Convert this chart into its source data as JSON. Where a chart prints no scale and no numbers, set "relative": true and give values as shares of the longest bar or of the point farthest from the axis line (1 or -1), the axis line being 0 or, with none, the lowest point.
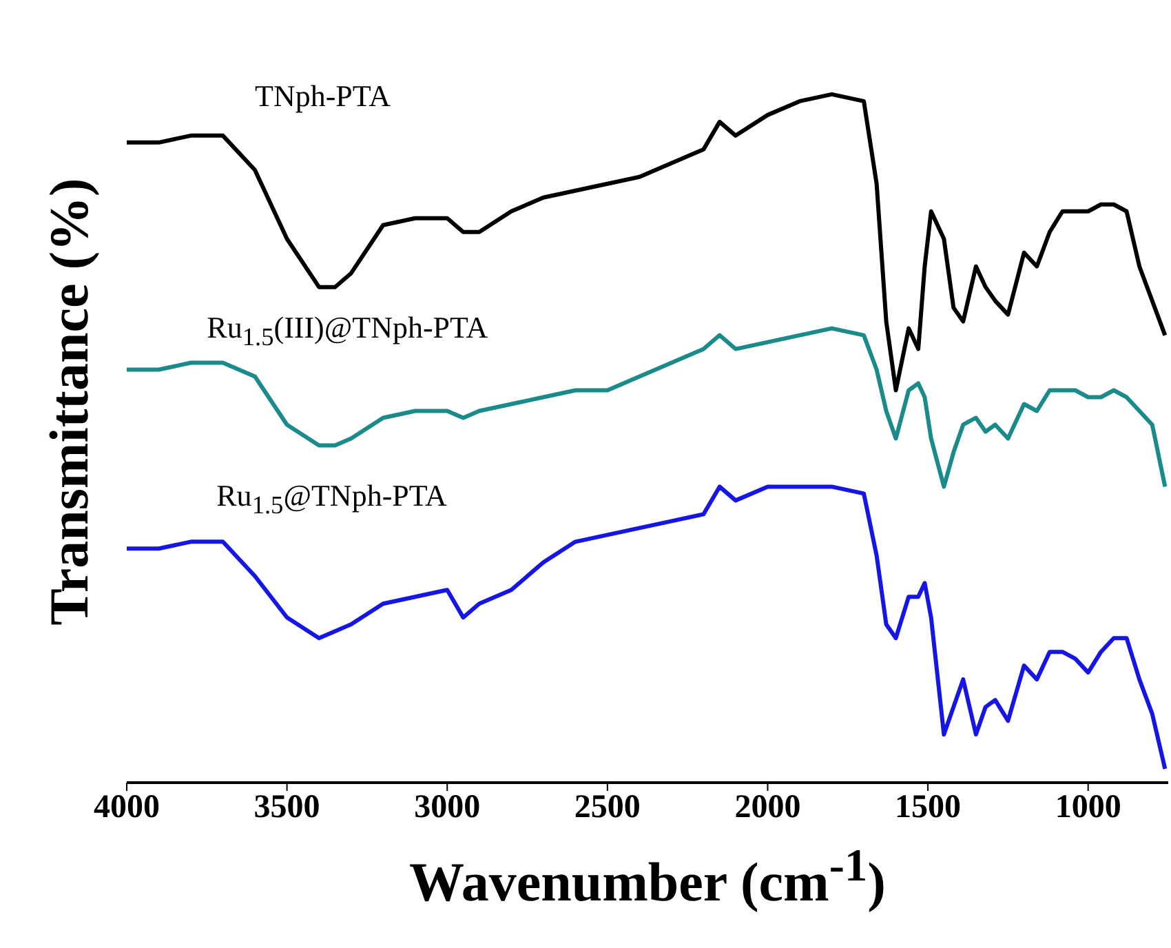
{
  "chart_data": {
    "type": "line",
    "relative": true,
    "xlabel": "Wavenumber (cm$^{-1}$)",
    "ylabel": "Transmittance (%)",
    "xlim": [
      4000,
      750
    ],
    "xticks": [
      4000,
      3500,
      3000,
      2500,
      2000,
      1500,
      1000
    ],
    "marker": "none",
    "line_style": "solid",
    "x": [
      4000,
      3900,
      3800,
      3700,
      3600,
      3500,
      3400,
      3350,
      3300,
      3200,
      3100,
      3000,
      2950,
      2900,
      2800,
      2700,
      2600,
      2500,
      2400,
      2300,
      2200,
      2150,
      2100,
      2000,
      1900,
      1800,
      1700,
      1660,
      1630,
      1600,
      1560,
      1530,
      1510,
      1490,
      1450,
      1420,
      1390,
      1350,
      1320,
      1290,
      1250,
      1200,
      1160,
      1120,
      1080,
      1040,
      1000,
      960,
      920,
      880,
      840,
      800,
      760
    ],
    "series": [
      {
        "name": "TNph-PTA",
        "color": "#000000",
        "values": [
          0.93,
          0.93,
          0.94,
          0.94,
          0.89,
          0.79,
          0.72,
          0.72,
          0.74,
          0.81,
          0.82,
          0.82,
          0.8,
          0.8,
          0.83,
          0.85,
          0.86,
          0.87,
          0.88,
          0.9,
          0.92,
          0.96,
          0.94,
          0.97,
          0.99,
          1.0,
          0.99,
          0.87,
          0.67,
          0.57,
          0.66,
          0.63,
          0.75,
          0.83,
          0.79,
          0.69,
          0.67,
          0.75,
          0.72,
          0.7,
          0.68,
          0.77,
          0.75,
          0.8,
          0.83,
          0.83,
          0.83,
          0.84,
          0.84,
          0.83,
          0.75,
          0.7,
          0.65
        ]
      },
      {
        "name": "Ru$_{1.5}$(III)@TNph-PTA",
        "color": "#1a8a8a",
        "values": [
          0.6,
          0.6,
          0.61,
          0.61,
          0.59,
          0.52,
          0.49,
          0.49,
          0.5,
          0.53,
          0.54,
          0.54,
          0.53,
          0.54,
          0.55,
          0.56,
          0.57,
          0.57,
          0.59,
          0.61,
          0.63,
          0.65,
          0.63,
          0.64,
          0.65,
          0.66,
          0.65,
          0.6,
          0.54,
          0.5,
          0.57,
          0.58,
          0.56,
          0.5,
          0.43,
          0.48,
          0.52,
          0.53,
          0.51,
          0.52,
          0.5,
          0.55,
          0.54,
          0.57,
          0.57,
          0.57,
          0.56,
          0.56,
          0.57,
          0.56,
          0.54,
          0.52,
          0.43
        ]
      },
      {
        "name": "Ru$_{1.5}$@TNph-PTA",
        "color": "#1515e6",
        "values": [
          0.34,
          0.34,
          0.35,
          0.35,
          0.3,
          0.24,
          0.21,
          0.22,
          0.23,
          0.26,
          0.27,
          0.28,
          0.24,
          0.26,
          0.28,
          0.32,
          0.35,
          0.36,
          0.37,
          0.38,
          0.39,
          0.43,
          0.41,
          0.43,
          0.43,
          0.43,
          0.42,
          0.33,
          0.23,
          0.21,
          0.27,
          0.27,
          0.29,
          0.24,
          0.07,
          0.11,
          0.15,
          0.07,
          0.11,
          0.12,
          0.09,
          0.17,
          0.15,
          0.19,
          0.19,
          0.18,
          0.16,
          0.19,
          0.21,
          0.21,
          0.15,
          0.1,
          0.02
        ]
      }
    ]
  }
}
